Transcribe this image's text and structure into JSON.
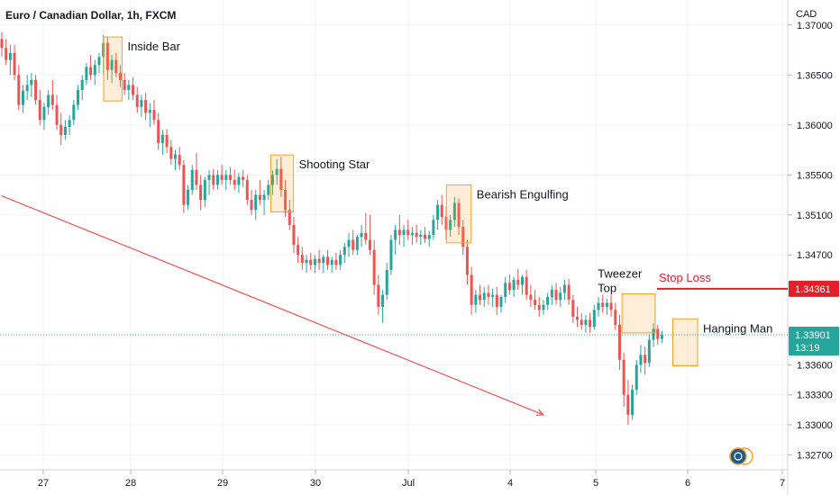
{
  "chart_data": {
    "type": "candlestick",
    "title": "Euro / Canadian Dollar, 1h, FXCM",
    "currency": "CAD",
    "x_ticks": [
      "27",
      "28",
      "29",
      "30",
      "Jul",
      "4",
      "5",
      "6",
      "7"
    ],
    "y_ticks": [
      "1.37000",
      "1.36500",
      "1.36000",
      "1.35500",
      "1.35100",
      "1.34700",
      "1.33600",
      "1.33300",
      "1.33000",
      "1.32700"
    ],
    "ylim": [
      1.3255,
      1.3725
    ],
    "grid": true,
    "colors": {
      "up": "#26a69a",
      "down": "#ef5350",
      "annotation_box": "#f7a128",
      "trend_line": "#ef5350",
      "stop_loss": "#e0202a"
    },
    "last_price": {
      "value": "1.33901",
      "countdown": "13:19",
      "level": 1.33901
    },
    "stop_loss": {
      "label": "Stop Loss",
      "value": "1.34361",
      "level": 1.34361
    },
    "trend_line": {
      "from": {
        "x": 0,
        "y": 1.3529
      },
      "to": {
        "x": 128,
        "y": 1.331
      }
    },
    "annotations": [
      {
        "label": "Inside Bar",
        "x0": 24.5,
        "x1": 28,
        "y_low": 1.3624,
        "y_high": 1.3688
      },
      {
        "label": "Shooting Star",
        "x0": 64,
        "x1": 68.5,
        "y_low": 1.3513,
        "y_high": 1.357
      },
      {
        "label": "Bearish Engulfing",
        "x0": 105.5,
        "x1": 110.5,
        "y_low": 1.3482,
        "y_high": 1.354
      },
      {
        "label": "Tweezer Top",
        "lines": [
          "Tweezer",
          "Top"
        ],
        "x0": 147,
        "x1": 154,
        "y_low": 1.3392,
        "y_high": 1.3431
      },
      {
        "label": "Hanging Man",
        "x0": 159,
        "x1": 164,
        "y_low": 1.3359,
        "y_high": 1.3406
      }
    ],
    "candles": [
      [
        1.3686,
        1.3693,
        1.3668,
        1.3677
      ],
      [
        1.3677,
        1.3686,
        1.366,
        1.3665
      ],
      [
        1.3665,
        1.368,
        1.365,
        1.3672
      ],
      [
        1.3672,
        1.368,
        1.3645,
        1.365
      ],
      [
        1.365,
        1.366,
        1.3615,
        1.362
      ],
      [
        1.362,
        1.364,
        1.3612,
        1.3634
      ],
      [
        1.3634,
        1.365,
        1.3625,
        1.364
      ],
      [
        1.364,
        1.3652,
        1.3628,
        1.3645
      ],
      [
        1.3645,
        1.365,
        1.362,
        1.3625
      ],
      [
        1.3625,
        1.3635,
        1.36,
        1.3605
      ],
      [
        1.3605,
        1.3622,
        1.3595,
        1.3618
      ],
      [
        1.3618,
        1.3635,
        1.361,
        1.363
      ],
      [
        1.363,
        1.3645,
        1.3615,
        1.362
      ],
      [
        1.362,
        1.363,
        1.3595,
        1.36
      ],
      [
        1.36,
        1.3612,
        1.358,
        1.359
      ],
      [
        1.359,
        1.3605,
        1.3585,
        1.3598
      ],
      [
        1.3598,
        1.361,
        1.359,
        1.3605
      ],
      [
        1.3605,
        1.3625,
        1.36,
        1.362
      ],
      [
        1.362,
        1.364,
        1.3615,
        1.3635
      ],
      [
        1.3635,
        1.365,
        1.3625,
        1.3645
      ],
      [
        1.3645,
        1.3662,
        1.364,
        1.3658
      ],
      [
        1.3658,
        1.367,
        1.3645,
        1.365
      ],
      [
        1.365,
        1.3665,
        1.364,
        1.366
      ],
      [
        1.366,
        1.3672,
        1.3652,
        1.3668
      ],
      [
        1.3668,
        1.369,
        1.365,
        1.3682
      ],
      [
        1.3682,
        1.3688,
        1.3645,
        1.3655
      ],
      [
        1.3655,
        1.367,
        1.3642,
        1.3665
      ],
      [
        1.3665,
        1.3672,
        1.3648,
        1.3652
      ],
      [
        1.3652,
        1.366,
        1.3638,
        1.3645
      ],
      [
        1.3645,
        1.3652,
        1.363,
        1.3635
      ],
      [
        1.3635,
        1.3645,
        1.3625,
        1.364
      ],
      [
        1.364,
        1.3648,
        1.3625,
        1.363
      ],
      [
        1.363,
        1.3638,
        1.3612,
        1.3618
      ],
      [
        1.3618,
        1.363,
        1.3608,
        1.3625
      ],
      [
        1.3625,
        1.3632,
        1.3605,
        1.3612
      ],
      [
        1.3612,
        1.3622,
        1.3598,
        1.3615
      ],
      [
        1.3615,
        1.3625,
        1.36,
        1.3605
      ],
      [
        1.3605,
        1.3612,
        1.3575,
        1.3582
      ],
      [
        1.3582,
        1.3595,
        1.357,
        1.359
      ],
      [
        1.359,
        1.3596,
        1.3572,
        1.3578
      ],
      [
        1.3578,
        1.3585,
        1.356,
        1.3566
      ],
      [
        1.3566,
        1.3575,
        1.3555,
        1.357
      ],
      [
        1.357,
        1.3578,
        1.3555,
        1.356
      ],
      [
        1.356,
        1.3565,
        1.3512,
        1.352
      ],
      [
        1.352,
        1.354,
        1.3515,
        1.3535
      ],
      [
        1.3535,
        1.356,
        1.353,
        1.3555
      ],
      [
        1.3555,
        1.3572,
        1.3535,
        1.354
      ],
      [
        1.354,
        1.355,
        1.3515,
        1.3525
      ],
      [
        1.3525,
        1.3548,
        1.3518,
        1.3545
      ],
      [
        1.3545,
        1.3555,
        1.353,
        1.355
      ],
      [
        1.355,
        1.3556,
        1.3535,
        1.354
      ],
      [
        1.354,
        1.3555,
        1.3535,
        1.355
      ],
      [
        1.355,
        1.356,
        1.354,
        1.3545
      ],
      [
        1.3545,
        1.3555,
        1.3535,
        1.355
      ],
      [
        1.355,
        1.3558,
        1.354,
        1.3545
      ],
      [
        1.3545,
        1.3555,
        1.3535,
        1.354
      ],
      [
        1.354,
        1.3552,
        1.3532,
        1.3548
      ],
      [
        1.3548,
        1.3555,
        1.3538,
        1.3545
      ],
      [
        1.3545,
        1.355,
        1.352,
        1.3525
      ],
      [
        1.3525,
        1.3535,
        1.351,
        1.3515
      ],
      [
        1.3515,
        1.3535,
        1.3505,
        1.353
      ],
      [
        1.353,
        1.3545,
        1.352,
        1.3525
      ],
      [
        1.3525,
        1.3535,
        1.351,
        1.353
      ],
      [
        1.353,
        1.3545,
        1.3525,
        1.354
      ],
      [
        1.354,
        1.3555,
        1.353,
        1.355
      ],
      [
        1.355,
        1.3566,
        1.354,
        1.3556
      ],
      [
        1.3556,
        1.3568,
        1.3528,
        1.3535
      ],
      [
        1.3535,
        1.3545,
        1.3508,
        1.3515
      ],
      [
        1.3515,
        1.3525,
        1.3495,
        1.35
      ],
      [
        1.35,
        1.3508,
        1.3472,
        1.348
      ],
      [
        1.348,
        1.3488,
        1.3462,
        1.347
      ],
      [
        1.347,
        1.3478,
        1.3455,
        1.3462
      ],
      [
        1.3462,
        1.347,
        1.3452,
        1.3465
      ],
      [
        1.3465,
        1.3472,
        1.3455,
        1.346
      ],
      [
        1.346,
        1.347,
        1.3452,
        1.3466
      ],
      [
        1.3466,
        1.3475,
        1.3455,
        1.3462
      ],
      [
        1.3462,
        1.347,
        1.3452,
        1.3468
      ],
      [
        1.3468,
        1.3475,
        1.3455,
        1.346
      ],
      [
        1.346,
        1.3468,
        1.3452,
        1.3465
      ],
      [
        1.3465,
        1.3472,
        1.3455,
        1.346
      ],
      [
        1.346,
        1.3475,
        1.3455,
        1.347
      ],
      [
        1.347,
        1.3482,
        1.3462,
        1.3478
      ],
      [
        1.3478,
        1.3492,
        1.3468,
        1.3485
      ],
      [
        1.3485,
        1.3495,
        1.347,
        1.3475
      ],
      [
        1.3475,
        1.349,
        1.347,
        1.3488
      ],
      [
        1.3488,
        1.35,
        1.3478,
        1.3492
      ],
      [
        1.3492,
        1.3512,
        1.348,
        1.3485
      ],
      [
        1.3485,
        1.351,
        1.347,
        1.3475
      ],
      [
        1.3475,
        1.3485,
        1.343,
        1.344
      ],
      [
        1.344,
        1.345,
        1.341,
        1.3418
      ],
      [
        1.3418,
        1.3435,
        1.3402,
        1.343
      ],
      [
        1.343,
        1.3462,
        1.3425,
        1.3455
      ],
      [
        1.3455,
        1.349,
        1.345,
        1.3485
      ],
      [
        1.3485,
        1.35,
        1.347,
        1.3495
      ],
      [
        1.3495,
        1.351,
        1.348,
        1.349
      ],
      [
        1.349,
        1.35,
        1.3478,
        1.3495
      ],
      [
        1.3495,
        1.3505,
        1.3485,
        1.349
      ],
      [
        1.349,
        1.3498,
        1.348,
        1.3492
      ],
      [
        1.3492,
        1.35,
        1.3482,
        1.3488
      ],
      [
        1.3488,
        1.3495,
        1.348,
        1.349
      ],
      [
        1.349,
        1.3498,
        1.3482,
        1.3486
      ],
      [
        1.3486,
        1.3494,
        1.3478,
        1.349
      ],
      [
        1.349,
        1.351,
        1.3485,
        1.3505
      ],
      [
        1.3505,
        1.3525,
        1.3495,
        1.352
      ],
      [
        1.352,
        1.353,
        1.35,
        1.3508
      ],
      [
        1.3508,
        1.3518,
        1.3485,
        1.3495
      ],
      [
        1.3495,
        1.351,
        1.3488,
        1.3505
      ],
      [
        1.3505,
        1.3528,
        1.3498,
        1.3522
      ],
      [
        1.3522,
        1.3526,
        1.349,
        1.3498
      ],
      [
        1.3498,
        1.3505,
        1.347,
        1.3478
      ],
      [
        1.3478,
        1.3485,
        1.344,
        1.345
      ],
      [
        1.345,
        1.3458,
        1.341,
        1.342
      ],
      [
        1.342,
        1.3435,
        1.3412,
        1.343
      ],
      [
        1.343,
        1.344,
        1.342,
        1.3425
      ],
      [
        1.3425,
        1.3438,
        1.3418,
        1.3432
      ],
      [
        1.3432,
        1.344,
        1.342,
        1.3428
      ],
      [
        1.3428,
        1.3436,
        1.3418,
        1.343
      ],
      [
        1.343,
        1.3438,
        1.341,
        1.3418
      ],
      [
        1.3418,
        1.343,
        1.3412,
        1.3428
      ],
      [
        1.3428,
        1.3448,
        1.3422,
        1.3442
      ],
      [
        1.3442,
        1.345,
        1.343,
        1.3435
      ],
      [
        1.3435,
        1.3448,
        1.3428,
        1.3445
      ],
      [
        1.3445,
        1.3456,
        1.3435,
        1.344
      ],
      [
        1.344,
        1.345,
        1.343,
        1.3448
      ],
      [
        1.3448,
        1.3455,
        1.3425,
        1.343
      ],
      [
        1.343,
        1.344,
        1.3418,
        1.3425
      ],
      [
        1.3425,
        1.3435,
        1.3415,
        1.342
      ],
      [
        1.342,
        1.3428,
        1.3408,
        1.3415
      ],
      [
        1.3415,
        1.3425,
        1.341,
        1.342
      ],
      [
        1.342,
        1.3432,
        1.3415,
        1.3428
      ],
      [
        1.3428,
        1.344,
        1.342,
        1.3435
      ],
      [
        1.3435,
        1.3442,
        1.342,
        1.3425
      ],
      [
        1.3425,
        1.3438,
        1.3418,
        1.3432
      ],
      [
        1.3432,
        1.3445,
        1.3425,
        1.344
      ],
      [
        1.344,
        1.3446,
        1.342,
        1.3425
      ],
      [
        1.3425,
        1.343,
        1.3402,
        1.3408
      ],
      [
        1.3408,
        1.3418,
        1.3398,
        1.3405
      ],
      [
        1.3405,
        1.3412,
        1.3395,
        1.34
      ],
      [
        1.34,
        1.341,
        1.3392,
        1.3405
      ],
      [
        1.3405,
        1.3412,
        1.3392,
        1.3398
      ],
      [
        1.3398,
        1.342,
        1.3395,
        1.3415
      ],
      [
        1.3415,
        1.3428,
        1.3408,
        1.3422
      ],
      [
        1.3422,
        1.343,
        1.3412,
        1.3418
      ],
      [
        1.3418,
        1.3426,
        1.341,
        1.3422
      ],
      [
        1.3422,
        1.343,
        1.3408,
        1.3415
      ],
      [
        1.3415,
        1.3422,
        1.3395,
        1.34
      ],
      [
        1.34,
        1.341,
        1.3355,
        1.3365
      ],
      [
        1.3365,
        1.3372,
        1.3318,
        1.333
      ],
      [
        1.333,
        1.3345,
        1.33,
        1.331
      ],
      [
        1.331,
        1.334,
        1.3305,
        1.3335
      ],
      [
        1.3335,
        1.3365,
        1.333,
        1.336
      ],
      [
        1.336,
        1.338,
        1.3352,
        1.337
      ],
      [
        1.337,
        1.3378,
        1.335,
        1.3362
      ],
      [
        1.3362,
        1.339,
        1.3358,
        1.3385
      ],
      [
        1.3385,
        1.3402,
        1.3378,
        1.3396
      ],
      [
        1.3396,
        1.34,
        1.338,
        1.3386
      ],
      [
        1.3386,
        1.3394,
        1.3382,
        1.339
      ]
    ]
  }
}
